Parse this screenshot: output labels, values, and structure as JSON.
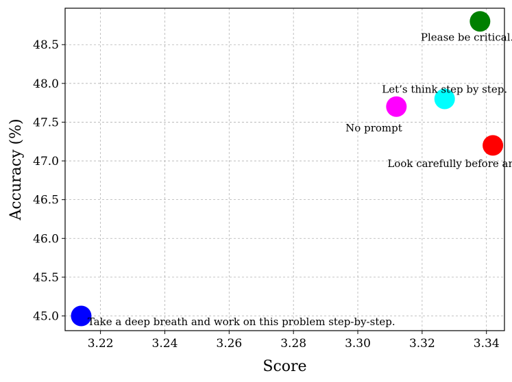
{
  "chart_data": {
    "type": "scatter",
    "title": "",
    "xlabel": "Score",
    "ylabel": "Accuracy (%)",
    "xlim": [
      3.209,
      3.3456
    ],
    "ylim": [
      44.81,
      48.97
    ],
    "x_ticks": [
      3.22,
      3.24,
      3.26,
      3.28,
      3.3,
      3.32,
      3.34
    ],
    "x_tick_labels": [
      "3.22",
      "3.24",
      "3.26",
      "3.28",
      "3.30",
      "3.32",
      "3.34"
    ],
    "y_ticks": [
      45.0,
      45.5,
      46.0,
      46.5,
      47.0,
      47.5,
      48.0,
      48.5
    ],
    "y_tick_labels": [
      "45.0",
      "45.5",
      "46.0",
      "46.5",
      "47.0",
      "47.5",
      "48.0",
      "48.5"
    ],
    "grid": true,
    "points": [
      {
        "label": "Please be critical.",
        "x": 3.338,
        "y": 48.8,
        "color": "#008000",
        "label_anchor": "middle",
        "label_dx": -0.004,
        "label_dy": -0.25
      },
      {
        "label": "Let’s think step by step.",
        "x": 3.327,
        "y": 47.8,
        "color": "#00ffff",
        "label_anchor": "middle",
        "label_dx": 0.0,
        "label_dy": 0.08
      },
      {
        "label": "No prompt",
        "x": 3.312,
        "y": 47.7,
        "color": "#ff00ff",
        "label_anchor": "middle",
        "label_dx": -0.007,
        "label_dy": -0.32
      },
      {
        "label": "Look carefully before answering.",
        "x": 3.342,
        "y": 47.2,
        "color": "#ff0000",
        "label_anchor": "middle",
        "label_dx": -0.006,
        "label_dy": -0.28
      },
      {
        "label": "Take a deep breath and work on this problem step-by-step.",
        "x": 3.214,
        "y": 45.0,
        "color": "#0000ff",
        "label_anchor": "start",
        "label_dx": 0.002,
        "label_dy": -0.12
      }
    ]
  }
}
